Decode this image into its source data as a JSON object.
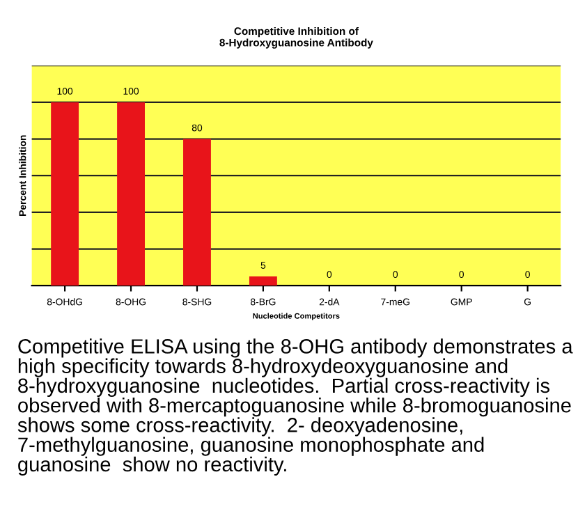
{
  "chart_data": {
    "type": "bar",
    "title": "Competitive Inhibition of\n8-Hydroxyguanosine Antibody",
    "xlabel": "Nucleotide Competitors",
    "ylabel": "Percent Inhibition",
    "categories": [
      "8-OHdG",
      "8-OHG",
      "8-SHG",
      "8-BrG",
      "2-dA",
      "7-meG",
      "GMP",
      "G"
    ],
    "values": [
      100,
      100,
      80,
      5,
      0,
      0,
      0,
      0
    ],
    "color": "#e8141a",
    "data_labels": true,
    "ylim": [
      0,
      120
    ],
    "yticks": [
      {
        "value": 0,
        "label": null
      },
      {
        "value": 20,
        "label": null
      },
      {
        "value": 40,
        "label": null
      },
      {
        "value": 60,
        "label": null
      },
      {
        "value": 80,
        "label": null
      },
      {
        "value": 100,
        "label": null
      },
      {
        "value": 120,
        "label": null
      }
    ],
    "tick_labels": "x",
    "grid": "y",
    "legend": false,
    "annotations": [
      "Competitive ELISA using the 8-OHG antibody demonstrates a high specificity towards 8-hydroxydeoxyguanosine and 8-hydroxyguanosine  nucleotides.  Partial cross-reactivity is observed with 8-mercaptoguanosine while 8-bromoguanosine shows some cross-reactivity.  2- deoxyadenosine, 7-methylguanosine, guanosine monophosphate and guanosine  show no reactivity."
    ]
  }
}
